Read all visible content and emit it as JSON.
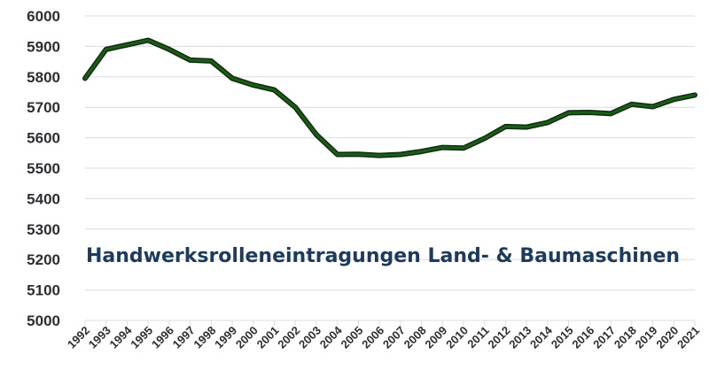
{
  "chart_data": {
    "type": "line",
    "title": "Handwerksrolleneintragungen Land- & Baumaschinen",
    "xlabel": "",
    "ylabel": "",
    "x": [
      "1992",
      "1993",
      "1994",
      "1995",
      "1996",
      "1997",
      "1998",
      "1999",
      "2000",
      "2001",
      "2002",
      "2003",
      "2004",
      "2005",
      "2006",
      "2007",
      "2008",
      "2009",
      "2010",
      "2011",
      "2012",
      "2013",
      "2014",
      "2015",
      "2016",
      "2017",
      "2018",
      "2019",
      "2020",
      "2021"
    ],
    "series": [
      {
        "values": [
          5795,
          5890,
          5905,
          5920,
          5890,
          5855,
          5852,
          5795,
          5773,
          5757,
          5700,
          5610,
          5545,
          5546,
          5542,
          5545,
          5555,
          5568,
          5566,
          5598,
          5637,
          5635,
          5650,
          5682,
          5683,
          5679,
          5710,
          5702,
          5726,
          5740
        ],
        "color": "#1e5a1a"
      }
    ],
    "yticks": [
      5000,
      5100,
      5200,
      5300,
      5400,
      5500,
      5600,
      5700,
      5800,
      5900,
      6000
    ],
    "ylim": [
      5000,
      6000
    ],
    "grid": true,
    "legend": "none"
  }
}
